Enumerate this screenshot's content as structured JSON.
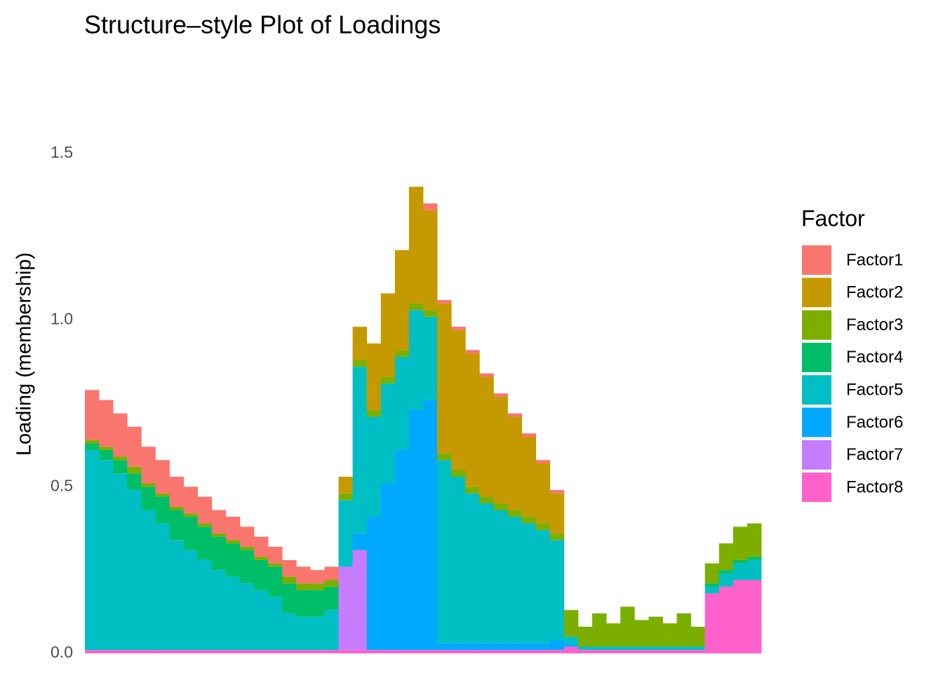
{
  "chart_data": {
    "type": "stacked-bar",
    "title": "Structure–style Plot of Loadings",
    "y_label": "Loading (membership)",
    "legend_title": "Factor",
    "ylim": [
      0,
      1.71
    ],
    "yticks": [
      {
        "value": 0,
        "label": "0.0"
      },
      0.5,
      {
        "value": 1,
        "label": "1.0"
      },
      1.5
    ],
    "grid": false,
    "legend": "right",
    "series": [
      {
        "name": "Factor1",
        "color": "#F8766D",
        "values": [
          0.15,
          0.14,
          0.13,
          0.12,
          0.11,
          0.1,
          0.09,
          0.08,
          0.08,
          0.07,
          0.07,
          0.06,
          0.06,
          0.05,
          0.05,
          0.05,
          0.04,
          0.04,
          0,
          0,
          0,
          0,
          0,
          0,
          0.02,
          0.01,
          0.01,
          0.01,
          0.01,
          0.01,
          0.01,
          0.01,
          0.01,
          0.01,
          0,
          0,
          0,
          0,
          0,
          0,
          0,
          0,
          0,
          0,
          0,
          0,
          0,
          0
        ]
      },
      {
        "name": "Factor2",
        "color": "#C49A00",
        "values": [
          0,
          0,
          0,
          0,
          0,
          0,
          0,
          0,
          0,
          0,
          0,
          0,
          0,
          0,
          0,
          0,
          0,
          0,
          0.05,
          0.1,
          0.2,
          0.25,
          0.3,
          0.35,
          0.3,
          0.45,
          0.42,
          0.4,
          0.36,
          0.32,
          0.28,
          0.24,
          0.18,
          0.12,
          0,
          0,
          0,
          0,
          0,
          0,
          0,
          0,
          0,
          0,
          0,
          0,
          0,
          0
        ]
      },
      {
        "name": "Factor3",
        "color": "#7CAE00",
        "values": [
          0.01,
          0.01,
          0.01,
          0.02,
          0.01,
          0.01,
          0.01,
          0.01,
          0.01,
          0.01,
          0.01,
          0.01,
          0.01,
          0.01,
          0.02,
          0.02,
          0.02,
          0.02,
          0.02,
          0.02,
          0.02,
          0.02,
          0.02,
          0.02,
          0.02,
          0.02,
          0.02,
          0.02,
          0.02,
          0.02,
          0.02,
          0.02,
          0.02,
          0.02,
          0.08,
          0.06,
          0.1,
          0.07,
          0.12,
          0.08,
          0.09,
          0.07,
          0.1,
          0.06,
          0.06,
          0.08,
          0.1,
          0.1
        ]
      },
      {
        "name": "Factor4",
        "color": "#00BE67",
        "values": [
          0.02,
          0.03,
          0.04,
          0.05,
          0.07,
          0.08,
          0.09,
          0.1,
          0.1,
          0.1,
          0.1,
          0.1,
          0.09,
          0.09,
          0.09,
          0.08,
          0.08,
          0.07,
          0,
          0,
          0,
          0,
          0,
          0,
          0,
          0,
          0,
          0,
          0,
          0,
          0,
          0,
          0,
          0,
          0,
          0,
          0,
          0,
          0,
          0,
          0,
          0,
          0,
          0,
          0.01,
          0.01,
          0.01,
          0.01
        ]
      },
      {
        "name": "Factor5",
        "color": "#00BFC4",
        "values": [
          0.6,
          0.57,
          0.53,
          0.48,
          0.42,
          0.38,
          0.33,
          0.3,
          0.27,
          0.24,
          0.22,
          0.2,
          0.18,
          0.16,
          0.11,
          0.1,
          0.1,
          0.12,
          0.2,
          0.5,
          0.3,
          0.3,
          0.28,
          0.3,
          0.25,
          0.55,
          0.5,
          0.45,
          0.42,
          0.4,
          0.38,
          0.36,
          0.34,
          0.3,
          0.02,
          0.01,
          0.01,
          0.01,
          0.01,
          0.01,
          0.01,
          0.01,
          0.01,
          0.01,
          0.02,
          0.04,
          0.05,
          0.06
        ]
      },
      {
        "name": "Factor6",
        "color": "#00A9FF",
        "values": [
          0,
          0,
          0,
          0,
          0,
          0,
          0,
          0,
          0,
          0,
          0,
          0,
          0,
          0,
          0,
          0,
          0,
          0,
          0,
          0.05,
          0.4,
          0.5,
          0.6,
          0.72,
          0.75,
          0.02,
          0.02,
          0.02,
          0.02,
          0.02,
          0.02,
          0.02,
          0.02,
          0.03,
          0.01,
          0,
          0,
          0,
          0,
          0,
          0,
          0,
          0,
          0,
          0,
          0,
          0,
          0
        ]
      },
      {
        "name": "Factor7",
        "color": "#C77CFF",
        "values": [
          0,
          0,
          0,
          0,
          0,
          0,
          0,
          0,
          0,
          0,
          0,
          0,
          0,
          0,
          0,
          0,
          0,
          0,
          0.25,
          0.3,
          0,
          0,
          0,
          0,
          0,
          0,
          0,
          0,
          0,
          0,
          0,
          0,
          0,
          0,
          0,
          0,
          0,
          0,
          0,
          0,
          0,
          0,
          0,
          0,
          0,
          0,
          0,
          0
        ]
      },
      {
        "name": "Factor8",
        "color": "#FF61CC",
        "values": [
          0.01,
          0.01,
          0.01,
          0.01,
          0.01,
          0.01,
          0.01,
          0.01,
          0.01,
          0.01,
          0.01,
          0.01,
          0.01,
          0.01,
          0.01,
          0.01,
          0.01,
          0.01,
          0.01,
          0.01,
          0.01,
          0.01,
          0.01,
          0.01,
          0.01,
          0.01,
          0.01,
          0.01,
          0.01,
          0.01,
          0.01,
          0.01,
          0.01,
          0.01,
          0.02,
          0.01,
          0.01,
          0.01,
          0.01,
          0.01,
          0.01,
          0.01,
          0.01,
          0.01,
          0.18,
          0.2,
          0.22,
          0.22
        ]
      }
    ]
  }
}
